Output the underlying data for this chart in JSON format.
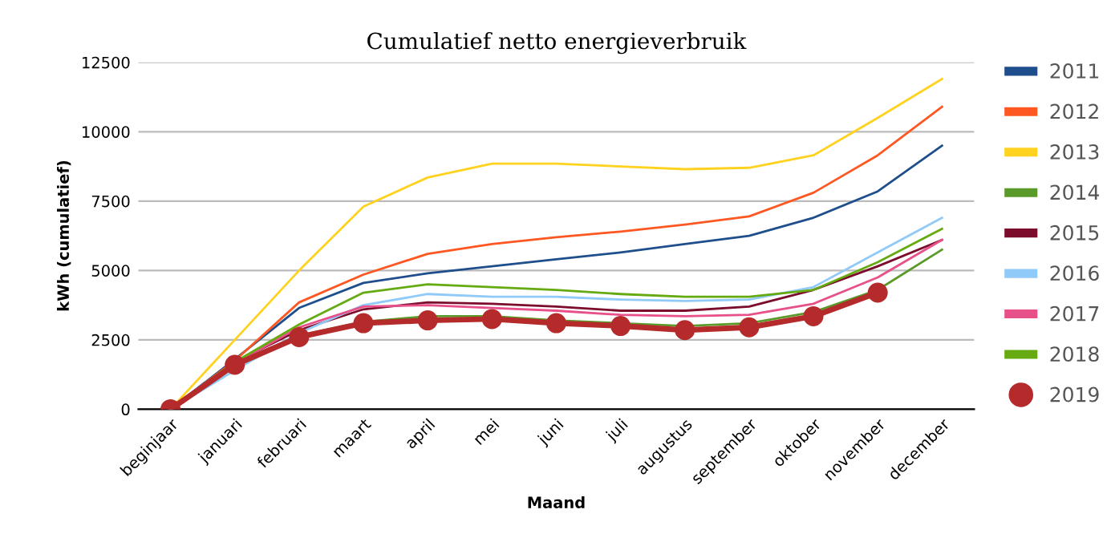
{
  "chart_data": {
    "type": "line",
    "title": "Cumulatief netto energieverbruik",
    "xlabel": "Maand",
    "ylabel": "kWh (cumulatief)",
    "categories": [
      "beginjaar",
      "januari",
      "februari",
      "maart",
      "april",
      "mei",
      "juni",
      "juli",
      "augustus",
      "september",
      "oktober",
      "november",
      "december"
    ],
    "ylim": [
      0,
      12500
    ],
    "yticks": [
      0,
      2500,
      5000,
      7500,
      10000,
      12500
    ],
    "grid": "y",
    "legend": "right",
    "marker": "none",
    "series": [
      {
        "name": "2011",
        "color": "#1f4e8c",
        "values": [
          0,
          1800,
          3650,
          4550,
          4900,
          5150,
          5400,
          5650,
          5950,
          6250,
          6900,
          7850,
          9500
        ]
      },
      {
        "name": "2012",
        "color": "#ff5722",
        "values": [
          0,
          1750,
          3850,
          4850,
          5600,
          5950,
          6200,
          6400,
          6650,
          6950,
          7800,
          9150,
          10900
        ]
      },
      {
        "name": "2013",
        "color": "#ffd21f",
        "values": [
          0,
          2500,
          5000,
          7300,
          8350,
          8850,
          8850,
          8750,
          8650,
          8700,
          9150,
          10500,
          11900
        ]
      },
      {
        "name": "2014",
        "color": "#5a9a2a",
        "values": [
          0,
          1600,
          2650,
          3150,
          3350,
          3350,
          3200,
          3100,
          3000,
          3100,
          3500,
          4300,
          5750
        ]
      },
      {
        "name": "2015",
        "color": "#7b0c2c",
        "values": [
          0,
          1700,
          2850,
          3600,
          3850,
          3800,
          3700,
          3550,
          3550,
          3700,
          4300,
          5150,
          6100
        ]
      },
      {
        "name": "2016",
        "color": "#90caf9",
        "values": [
          0,
          1400,
          2750,
          3750,
          4150,
          4050,
          4050,
          3950,
          3900,
          3950,
          4400,
          5650,
          6900
        ]
      },
      {
        "name": "2017",
        "color": "#e8508a",
        "values": [
          0,
          1650,
          2950,
          3700,
          3750,
          3650,
          3550,
          3400,
          3350,
          3400,
          3800,
          4750,
          6100
        ]
      },
      {
        "name": "2018",
        "color": "#66aa11",
        "values": [
          0,
          1700,
          3050,
          4200,
          4500,
          4400,
          4300,
          4150,
          4050,
          4050,
          4300,
          5300,
          6500
        ]
      },
      {
        "name": "2019",
        "color": "#b52b2b",
        "marker": "circle",
        "values": [
          0,
          1600,
          2600,
          3100,
          3200,
          3250,
          3100,
          3000,
          2850,
          2950,
          3350,
          4200,
          null
        ]
      }
    ]
  }
}
